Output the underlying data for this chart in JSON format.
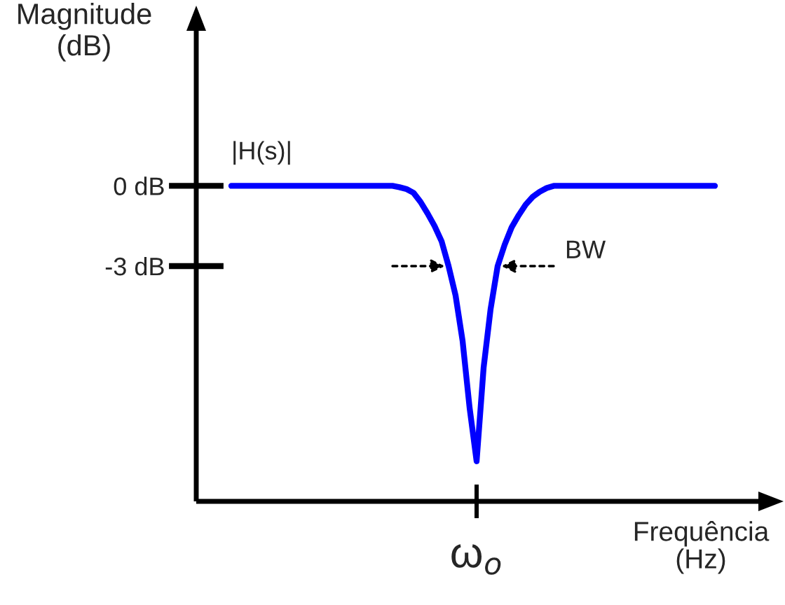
{
  "chart_data": {
    "type": "line",
    "xlabel": "Frequência\n(Hz)",
    "ylabel": "Magnitude\n(dB)",
    "categories": [
      null,
      null,
      null,
      null,
      null,
      null,
      null,
      null,
      null,
      null,
      null,
      null,
      null,
      null,
      null,
      null,
      null,
      null,
      null,
      null,
      null,
      null,
      null,
      null,
      null,
      null,
      null,
      null,
      null,
      null,
      null,
      null,
      null,
      null,
      null,
      "ω$_{o}$",
      null,
      null,
      null,
      null,
      null,
      null,
      null,
      null,
      null,
      null,
      null,
      null,
      null,
      null,
      null,
      null,
      null,
      null,
      null,
      null,
      null,
      null,
      null,
      null,
      null,
      null,
      null,
      null,
      null,
      null,
      null,
      null,
      null,
      null
    ],
    "series": [
      {
        "name": "|H(s)|",
        "color": "#0000ff",
        "values": [
          0,
          0,
          0,
          0,
          0,
          0,
          0,
          0,
          0,
          0,
          0,
          0,
          0,
          0,
          0,
          0,
          0,
          0,
          0,
          0,
          0,
          0,
          0,
          0,
          -0.05,
          -0.12,
          -0.26,
          -0.6,
          -1.03,
          -1.5,
          -2.07,
          -3,
          -4.1,
          -5.8,
          -8.3,
          -10.3,
          -6.8,
          -4.6,
          -3,
          -2.2,
          -1.55,
          -1.1,
          -0.7,
          -0.41,
          -0.22,
          -0.08,
          0,
          0,
          0,
          0,
          0,
          0,
          0,
          0,
          0,
          0,
          0,
          0,
          0,
          0,
          0,
          0,
          0,
          0,
          0,
          0,
          0,
          0,
          0,
          0
        ]
      }
    ],
    "ylim": [
      -11.8,
      5.8
    ],
    "yticks": [
      {
        "value": 0,
        "label": "0 dB"
      },
      {
        "value": -3,
        "label": "-3 dB"
      }
    ],
    "annotations": [
      "BW"
    ],
    "grid": false,
    "legend": false,
    "line_style": "solid",
    "marker": "none"
  }
}
